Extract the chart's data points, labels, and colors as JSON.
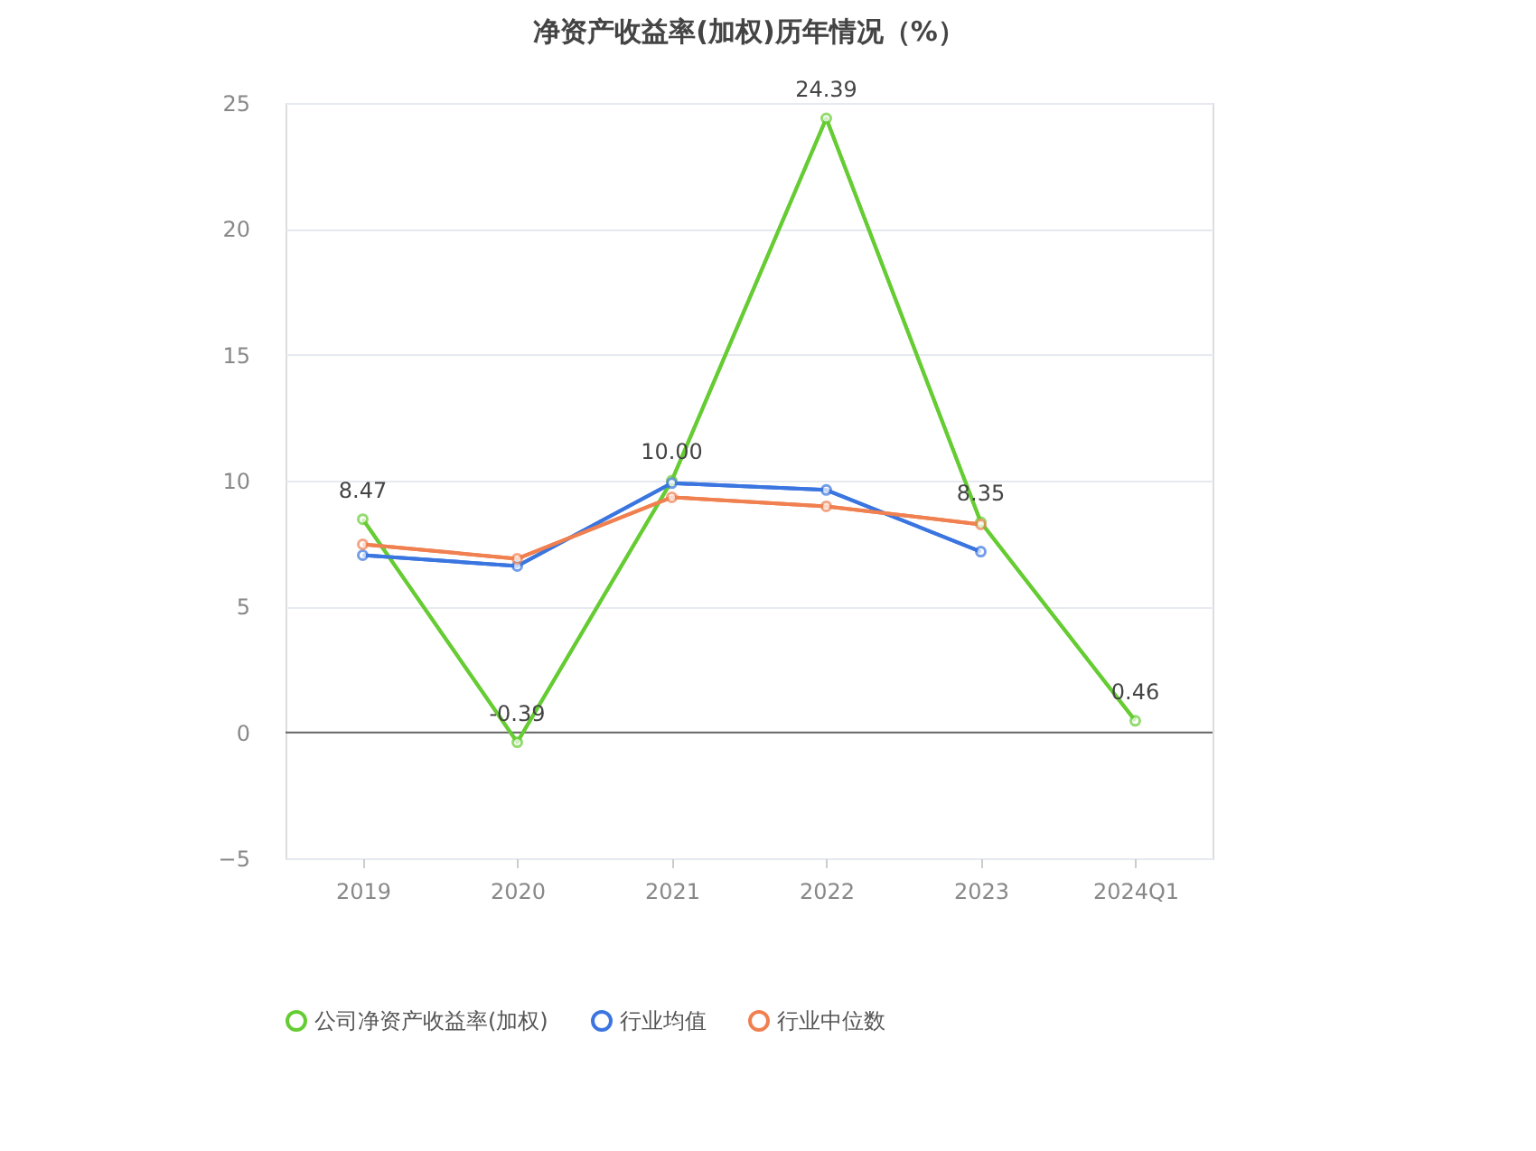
{
  "chart_data": {
    "type": "line",
    "title": "净资产收益率(加权)历年情况（%）",
    "categories": [
      "2019",
      "2020",
      "2021",
      "2022",
      "2023",
      "2024Q1"
    ],
    "series": [
      {
        "name": "公司净资产收益率(加权)",
        "color": "#66cc33",
        "values": [
          8.47,
          -0.39,
          10.0,
          24.39,
          8.35,
          0.46
        ],
        "value_labels": [
          "8.47",
          "-0.39",
          "10.00",
          "24.39",
          "8.35",
          "0.46"
        ]
      },
      {
        "name": "行业均值",
        "color": "#3a75e0",
        "values": [
          7.04,
          6.61,
          9.9,
          9.63,
          7.18,
          null
        ]
      },
      {
        "name": "行业中位数",
        "color": "#f08050",
        "values": [
          7.47,
          6.9,
          9.34,
          8.98,
          8.26,
          null
        ]
      }
    ],
    "ylim": [
      -5,
      25
    ],
    "yticks": [
      -5,
      0,
      5,
      10,
      15,
      20,
      25
    ],
    "grid": "y",
    "legend": "bottom",
    "marker": "circle",
    "line_style": "solid",
    "ref_lines": [
      {
        "axis": "y",
        "value": 0,
        "color": "#666666"
      }
    ]
  }
}
